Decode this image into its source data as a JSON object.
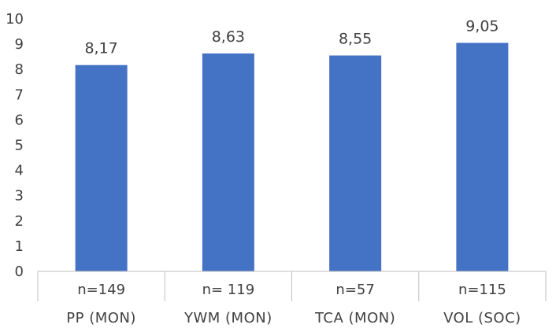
{
  "chart_data": {
    "type": "bar",
    "title": "",
    "xlabel": "",
    "ylabel": "",
    "ylim": [
      0,
      10
    ],
    "yticks": [
      "0",
      "1",
      "2",
      "3",
      "4",
      "5",
      "6",
      "7",
      "8",
      "9",
      "10"
    ],
    "grid": false,
    "legend": "none",
    "bar_color": "#4472C4",
    "categories": [
      {
        "count_label": "n=149",
        "name": "PP (MON)"
      },
      {
        "count_label": "n= 119",
        "name": "YWM (MON)"
      },
      {
        "count_label": "n=57",
        "name": "TCA (MON)"
      },
      {
        "count_label": "n=115",
        "name": "VOL (SOC)"
      }
    ],
    "values": [
      8.17,
      8.63,
      8.55,
      9.05
    ],
    "data_labels": [
      "8,17",
      "8,63",
      "8,55",
      "9,05"
    ]
  }
}
